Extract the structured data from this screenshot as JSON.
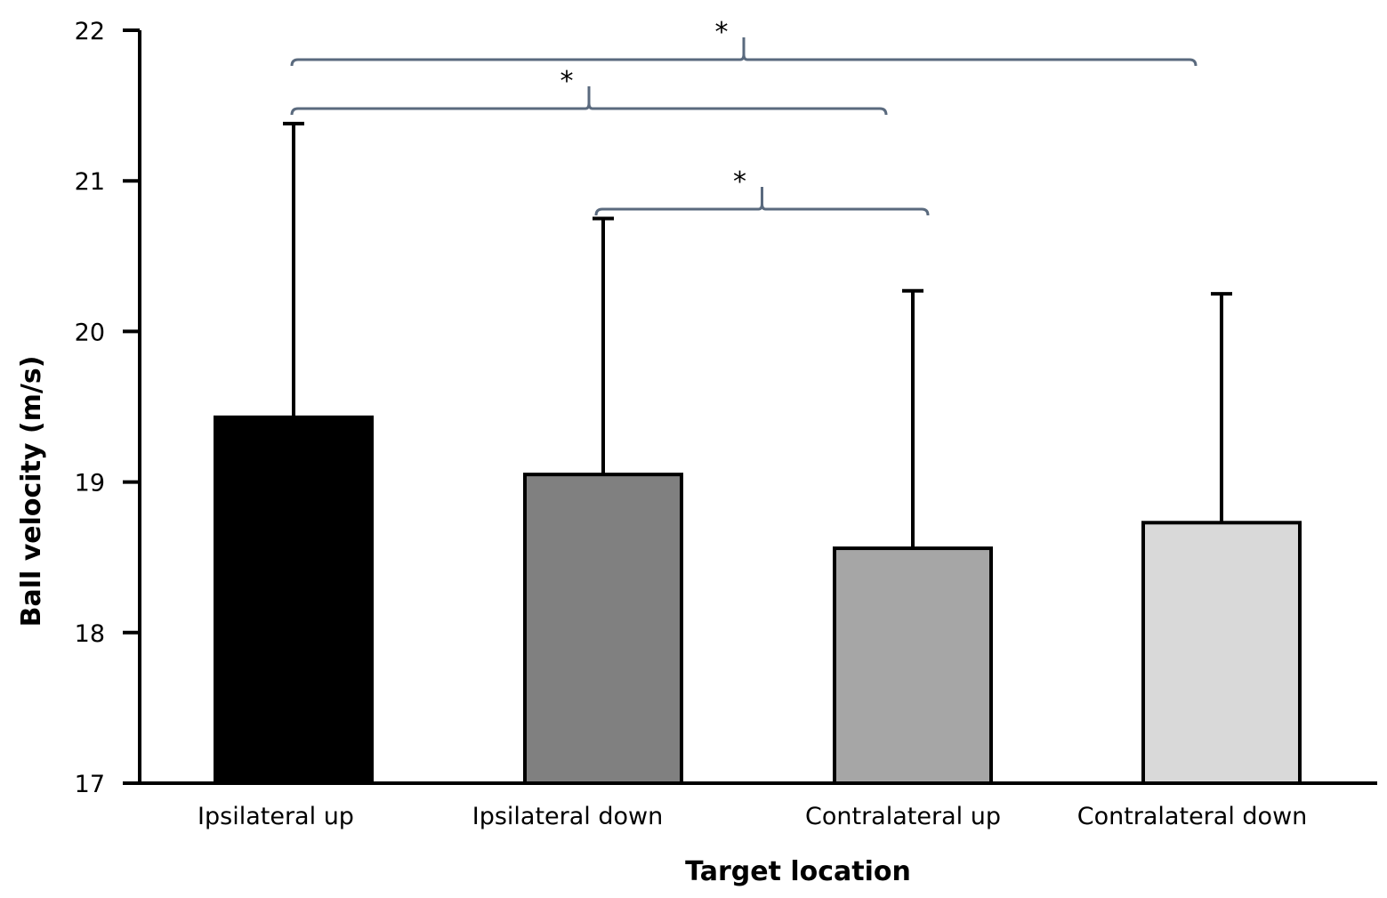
{
  "chart_data": {
    "type": "bar",
    "xlabel": "Target location",
    "ylabel": "Ball velocity (m/s)",
    "ylim": [
      17,
      22
    ],
    "yticks": [
      17,
      18,
      19,
      20,
      21,
      22
    ],
    "categories": [
      "Ipsilateral up",
      "Ipsilateral down",
      "Contralateral up",
      "Contralateral down"
    ],
    "values": [
      19.43,
      19.05,
      18.56,
      18.73
    ],
    "error_upper": [
      21.38,
      20.75,
      20.27,
      20.25
    ],
    "bar_colors": [
      "#000000",
      "#808080",
      "#a6a6a6",
      "#d9d9d9"
    ],
    "significance": [
      {
        "from": 0,
        "to": 3,
        "label": "*"
      },
      {
        "from": 0,
        "to": 2,
        "label": "*"
      },
      {
        "from": 1,
        "to": 2,
        "label": "*"
      }
    ],
    "bracket_color": "#5a6a7e",
    "grid": false,
    "legend": false
  }
}
